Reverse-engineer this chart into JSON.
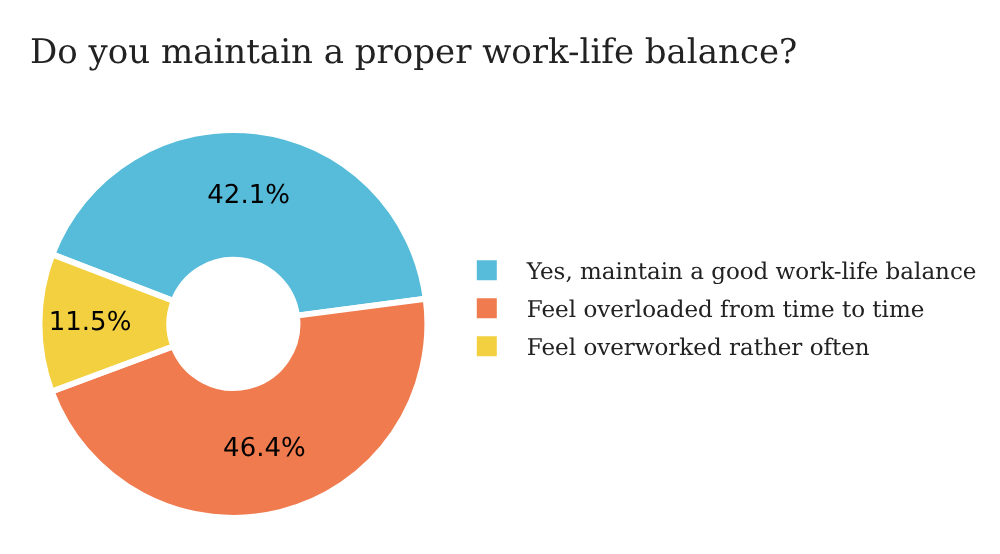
{
  "chart_data": {
    "type": "donut",
    "title": "Do you maintain a proper work-life balance?",
    "categories": [
      "Yes, maintain a good work-life balance",
      "Feel overloaded from time to time",
      "Feel overworked rather often"
    ],
    "values": [
      42.1,
      46.4,
      11.5
    ],
    "colors": [
      "#56bcd9",
      "#ef7b4e",
      "#f2d03f"
    ],
    "value_labels": [
      "42.1%",
      "46.4%",
      "11.5%"
    ],
    "legend": "right"
  }
}
